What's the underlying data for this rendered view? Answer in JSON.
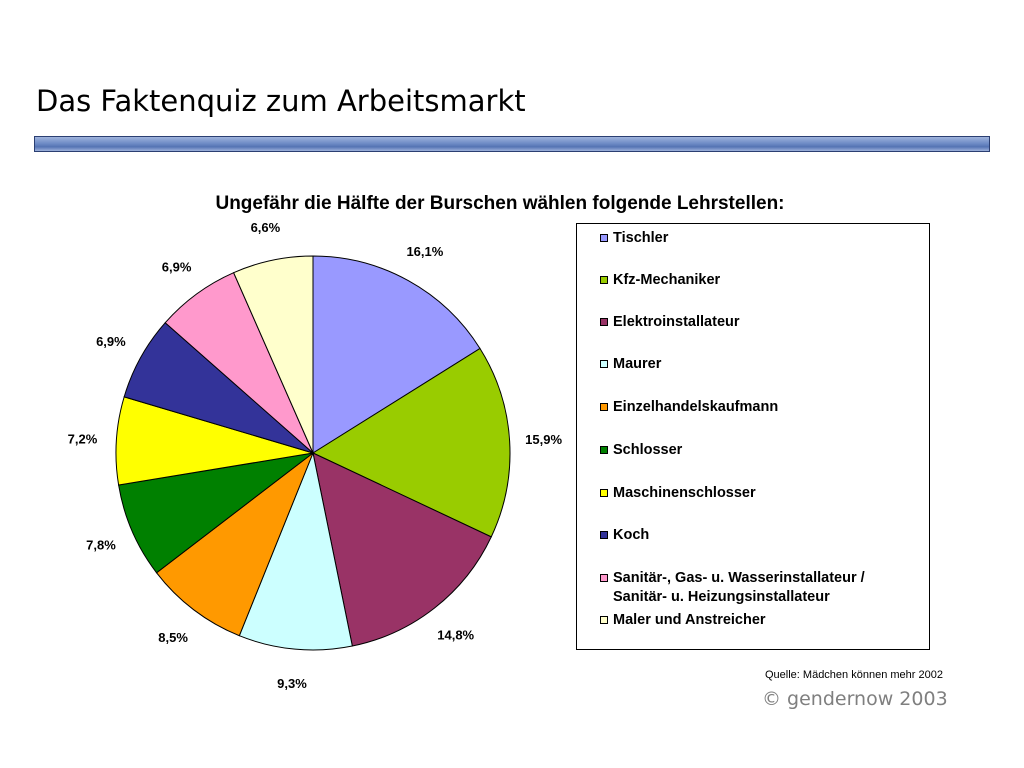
{
  "slide": {
    "title": "Das Faktenquiz zum Arbeitsmarkt"
  },
  "chart_data": {
    "type": "pie",
    "title": "Ungefähr die Hälfte der Burschen wählen folgende Lehrstellen:",
    "legend_position": "right",
    "slices": [
      {
        "label": "Tischler",
        "value": 16.1,
        "value_label": "16,1%",
        "color": "#9999ff"
      },
      {
        "label": "Kfz-Mechaniker",
        "value": 15.9,
        "value_label": "15,9%",
        "color": "#99cc00"
      },
      {
        "label": "Elektroinstallateur",
        "value": 14.8,
        "value_label": "14,8%",
        "color": "#993366"
      },
      {
        "label": "Maurer",
        "value": 9.3,
        "value_label": "9,3%",
        "color": "#ccffff"
      },
      {
        "label": "Einzelhandelskaufmann",
        "value": 8.5,
        "value_label": "8,5%",
        "color": "#ff9900"
      },
      {
        "label": "Schlosser",
        "value": 7.8,
        "value_label": "7,8%",
        "color": "#008000"
      },
      {
        "label": "Maschinenschlosser",
        "value": 7.2,
        "value_label": "7,2%",
        "color": "#ffff00"
      },
      {
        "label": "Koch",
        "value": 6.9,
        "value_label": "6,9%",
        "color": "#333399"
      },
      {
        "label": "Sanitär-, Gas- u. Wasserinstallateur / Sanitär- u. Heizungsinstallateur",
        "label_lines": [
          "Sanitär-, Gas- u. Wasserinstallateur /",
          "Sanitär- u. Heizungsinstallateur"
        ],
        "value": 6.9,
        "value_label": "6,9%",
        "color": "#ff99cc"
      },
      {
        "label": "Maler und Anstreicher",
        "value": 6.6,
        "value_label": "6,6%",
        "color": "#ffffcc"
      }
    ]
  },
  "footer": {
    "source": "Quelle: Mädchen können mehr 2002",
    "copyright": "©  gendernow 2003"
  }
}
